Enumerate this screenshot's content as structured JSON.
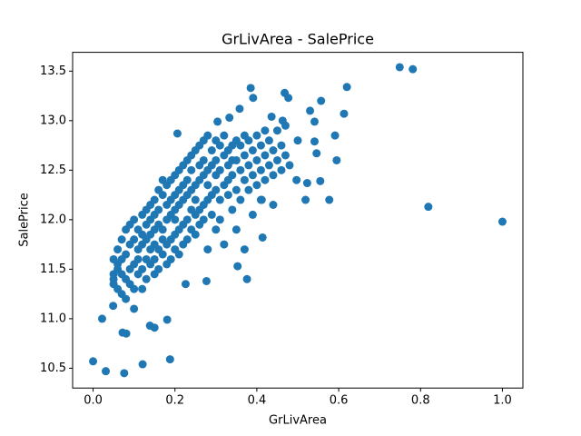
{
  "chart_data": {
    "type": "scatter",
    "title": "GrLivArea - SalePrice",
    "x_label": "GrLivArea",
    "y_label": "SalePrice",
    "xlim": [
      -0.05,
      1.05
    ],
    "ylim": [
      10.3,
      13.69
    ],
    "xticks": [
      {
        "value": 0,
        "label": "0.0"
      },
      0.2,
      0.4,
      0.6,
      0.8,
      {
        "value": 1,
        "label": "1.0"
      }
    ],
    "yticks": [
      10.5,
      {
        "value": 11,
        "label": "11.0"
      },
      11.5,
      {
        "value": 12,
        "label": "12.0"
      },
      12.5,
      {
        "value": 13,
        "label": "13.0"
      },
      13.5
    ],
    "grid": false,
    "series": [
      {
        "color": "#1f77b4",
        "x": [
          0.05,
          0.05,
          0.05,
          0.05,
          0.06,
          0.06,
          0.06,
          0.06,
          0.07,
          0.07,
          0.07,
          0.07,
          0.08,
          0.08,
          0.08,
          0.08,
          0.09,
          0.09,
          0.09,
          0.09,
          0.1,
          0.1,
          0.1,
          0.1,
          0.1,
          0.11,
          0.11,
          0.11,
          0.11,
          0.12,
          0.12,
          0.12,
          0.12,
          0.12,
          0.13,
          0.13,
          0.13,
          0.13,
          0.13,
          0.14,
          0.14,
          0.14,
          0.14,
          0.14,
          0.15,
          0.15,
          0.15,
          0.15,
          0.15,
          0.15,
          0.16,
          0.16,
          0.16,
          0.16,
          0.16,
          0.17,
          0.17,
          0.17,
          0.17,
          0.17,
          0.18,
          0.18,
          0.18,
          0.18,
          0.18,
          0.19,
          0.19,
          0.19,
          0.19,
          0.19,
          0.2,
          0.2,
          0.2,
          0.2,
          0.2,
          0.2,
          0.21,
          0.21,
          0.21,
          0.21,
          0.21,
          0.22,
          0.22,
          0.22,
          0.22,
          0.22,
          0.23,
          0.23,
          0.23,
          0.23,
          0.23,
          0.24,
          0.24,
          0.24,
          0.24,
          0.24,
          0.25,
          0.25,
          0.25,
          0.25,
          0.25,
          0.26,
          0.26,
          0.26,
          0.26,
          0.26,
          0.27,
          0.27,
          0.27,
          0.27,
          0.27,
          0.28,
          0.28,
          0.28,
          0.28,
          0.28,
          0.29,
          0.29,
          0.29,
          0.29,
          0.3,
          0.3,
          0.3,
          0.3,
          0.3,
          0.31,
          0.31,
          0.31,
          0.31,
          0.32,
          0.32,
          0.32,
          0.32,
          0.33,
          0.33,
          0.33,
          0.33,
          0.34,
          0.34,
          0.34,
          0.34,
          0.35,
          0.35,
          0.35,
          0.35,
          0.36,
          0.36,
          0.36,
          0.37,
          0.37,
          0.37,
          0.37,
          0.38,
          0.38,
          0.38,
          0.39,
          0.39,
          0.39,
          0.4,
          0.4,
          0.4,
          0.41,
          0.41,
          0.41,
          0.42,
          0.42,
          0.42,
          0.43,
          0.43,
          0.44,
          0.44,
          0.44,
          0.45,
          0.45,
          0.46,
          0.46,
          0.47,
          0.47,
          0.48,
          0.5,
          0.0,
          0.031,
          0.076,
          0.121,
          0.188,
          0.022,
          0.049,
          0.072,
          0.081,
          0.15,
          0.139,
          0.181,
          0.749,
          0.781,
          0.819,
          1.0,
          0.62,
          0.613,
          0.591,
          0.595,
          0.577,
          0.555,
          0.557,
          0.53,
          0.541,
          0.541,
          0.546,
          0.519,
          0.523,
          0.497,
          0.385,
          0.391,
          0.468,
          0.477,
          0.436,
          0.463,
          0.376,
          0.412,
          0.414,
          0.353,
          0.277,
          0.226,
          0.206,
          0.304,
          0.333,
          0.358
        ],
        "values": [
          11.35,
          11.45,
          11.6,
          11.4,
          11.3,
          11.5,
          11.7,
          11.55,
          11.25,
          11.6,
          11.8,
          11.45,
          11.4,
          11.65,
          11.9,
          11.2,
          11.5,
          11.75,
          11.95,
          11.35,
          11.3,
          11.55,
          11.8,
          12.0,
          11.1,
          11.45,
          11.7,
          11.9,
          11.6,
          11.5,
          11.75,
          12.05,
          11.3,
          11.85,
          11.6,
          11.8,
          12.1,
          11.4,
          11.95,
          11.55,
          11.85,
          12.15,
          11.7,
          12.0,
          11.6,
          11.9,
          12.2,
          11.45,
          11.75,
          12.05,
          11.7,
          11.95,
          12.3,
          11.5,
          12.1,
          11.65,
          11.9,
          12.25,
          12.4,
          11.8,
          11.75,
          12.0,
          12.35,
          11.55,
          12.15,
          11.8,
          12.05,
          12.4,
          11.6,
          12.2,
          11.85,
          12.1,
          12.45,
          11.7,
          12.25,
          12.0,
          11.9,
          12.15,
          12.5,
          11.65,
          12.3,
          11.95,
          12.2,
          12.55,
          11.75,
          12.35,
          12.0,
          12.25,
          12.6,
          11.8,
          12.4,
          11.9,
          12.3,
          12.65,
          12.1,
          12.5,
          12.05,
          12.35,
          12.7,
          11.85,
          12.2,
          12.1,
          12.4,
          12.75,
          11.95,
          12.55,
          12.15,
          12.45,
          12.8,
          12.0,
          12.6,
          12.2,
          12.5,
          12.85,
          11.7,
          12.35,
          12.25,
          12.55,
          12.7,
          12.05,
          12.3,
          12.6,
          12.8,
          11.9,
          12.45,
          12.2,
          12.5,
          12.75,
          12.0,
          12.35,
          12.65,
          12.85,
          11.75,
          12.4,
          12.7,
          12.25,
          12.55,
          12.45,
          12.75,
          12.1,
          12.6,
          12.3,
          12.6,
          12.8,
          11.9,
          12.5,
          12.75,
          12.2,
          12.4,
          12.65,
          12.85,
          11.7,
          12.55,
          12.8,
          12.3,
          12.45,
          12.7,
          12.05,
          12.6,
          12.85,
          12.35,
          12.5,
          12.75,
          12.2,
          12.65,
          12.9,
          12.4,
          12.55,
          12.8,
          12.7,
          12.45,
          12.15,
          12.6,
          12.9,
          12.75,
          12.5,
          12.95,
          12.65,
          12.55,
          12.8,
          10.57,
          10.47,
          10.45,
          10.54,
          10.59,
          11.0,
          11.13,
          10.86,
          10.85,
          10.91,
          10.93,
          10.99,
          13.54,
          13.52,
          12.13,
          11.98,
          13.34,
          13.07,
          12.85,
          12.6,
          12.2,
          12.39,
          13.2,
          13.1,
          12.99,
          12.79,
          12.67,
          12.2,
          12.37,
          12.4,
          13.33,
          13.23,
          13.28,
          13.23,
          13.04,
          13.0,
          11.4,
          12.2,
          11.82,
          11.53,
          11.38,
          11.35,
          12.87,
          12.99,
          13.03,
          13.12
        ]
      }
    ]
  }
}
